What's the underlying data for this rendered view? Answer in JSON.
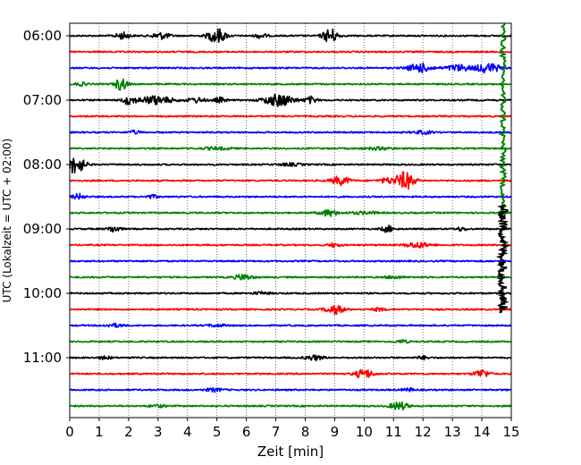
{
  "chart_data": {
    "type": "line",
    "title": "",
    "xlabel": "Zeit  [min]",
    "ylabel": "UTC (Lokalzeit = UTC + 02:00)",
    "xlim": [
      0,
      15
    ],
    "x_ticks": [
      0,
      1,
      2,
      3,
      4,
      5,
      6,
      7,
      8,
      9,
      10,
      11,
      12,
      13,
      14,
      15
    ],
    "x_tick_labels": [
      "0",
      "1",
      "2",
      "3",
      "4",
      "5",
      "6",
      "7",
      "8",
      "9",
      "10",
      "11",
      "12",
      "13",
      "14",
      "15"
    ],
    "y_tick_labels": [
      "06:00",
      "07:00",
      "08:00",
      "09:00",
      "10:00",
      "11:00"
    ],
    "y_tick_trace_index": [
      0,
      4,
      8,
      12,
      16,
      20
    ],
    "grid": "vertical dotted",
    "legend": "none",
    "series_colors": [
      "#000000",
      "#ff0000",
      "#0000ff",
      "#008000"
    ],
    "traces": [
      {
        "start": "06:00",
        "color": "#000000",
        "bursts": [
          [
            1.8,
            0.25,
            0.4
          ],
          [
            3.1,
            0.3,
            0.4
          ],
          [
            5.0,
            0.3,
            0.9
          ],
          [
            6.5,
            0.2,
            0.3
          ],
          [
            8.85,
            0.25,
            0.9
          ]
        ]
      },
      {
        "start": "06:15",
        "color": "#ff0000",
        "bursts": []
      },
      {
        "start": "06:30",
        "color": "#0000ff",
        "bursts": [
          [
            11.9,
            0.4,
            0.55
          ],
          [
            13.2,
            0.4,
            0.4
          ],
          [
            14.2,
            0.4,
            0.6
          ]
        ]
      },
      {
        "start": "06:45",
        "color": "#008000",
        "bursts": [
          [
            1.75,
            0.2,
            0.8
          ],
          [
            0.4,
            0.2,
            0.2
          ]
        ]
      },
      {
        "start": "07:00",
        "color": "#000000",
        "bursts": [
          [
            2.0,
            0.2,
            0.5
          ],
          [
            2.9,
            0.6,
            0.5
          ],
          [
            4.3,
            0.3,
            0.3
          ],
          [
            5.1,
            0.2,
            0.3
          ],
          [
            7.1,
            0.5,
            0.75
          ],
          [
            8.2,
            0.2,
            0.4
          ]
        ]
      },
      {
        "start": "07:15",
        "color": "#ff0000",
        "bursts": []
      },
      {
        "start": "07:30",
        "color": "#0000ff",
        "bursts": [
          [
            2.2,
            0.2,
            0.2
          ],
          [
            12.0,
            0.3,
            0.2
          ]
        ]
      },
      {
        "start": "07:45",
        "color": "#008000",
        "bursts": [
          [
            5.0,
            0.5,
            0.15
          ],
          [
            10.5,
            0.5,
            0.15
          ]
        ]
      },
      {
        "start": "08:00",
        "color": "#000000",
        "bursts": [
          [
            0.2,
            0.3,
            1.1
          ],
          [
            7.5,
            0.4,
            0.15
          ]
        ]
      },
      {
        "start": "08:15",
        "color": "#ff0000",
        "bursts": [
          [
            9.2,
            0.3,
            0.55
          ],
          [
            10.8,
            0.3,
            0.3
          ],
          [
            11.4,
            0.3,
            1.1
          ]
        ]
      },
      {
        "start": "08:30",
        "color": "#0000ff",
        "bursts": [
          [
            0.3,
            0.2,
            0.35
          ],
          [
            2.8,
            0.2,
            0.2
          ]
        ]
      },
      {
        "start": "08:45",
        "color": "#008000",
        "bursts": [
          [
            8.8,
            0.3,
            0.4
          ],
          [
            10.0,
            0.5,
            0.15
          ]
        ]
      },
      {
        "start": "09:00",
        "color": "#000000",
        "bursts": [
          [
            1.5,
            0.2,
            0.4
          ],
          [
            10.8,
            0.2,
            0.4
          ],
          [
            13.3,
            0.2,
            0.2
          ]
        ]
      },
      {
        "start": "09:15",
        "color": "#ff0000",
        "bursts": [
          [
            9.0,
            0.2,
            0.25
          ],
          [
            11.8,
            0.4,
            0.35
          ]
        ]
      },
      {
        "start": "09:30",
        "color": "#0000ff",
        "bursts": []
      },
      {
        "start": "09:45",
        "color": "#008000",
        "bursts": [
          [
            5.9,
            0.3,
            0.35
          ],
          [
            11.0,
            0.3,
            0.15
          ]
        ]
      },
      {
        "start": "10:00",
        "color": "#000000",
        "bursts": [
          [
            6.5,
            0.3,
            0.15
          ]
        ]
      },
      {
        "start": "10:15",
        "color": "#ff0000",
        "bursts": [
          [
            9.0,
            0.3,
            0.55
          ],
          [
            10.5,
            0.2,
            0.2
          ]
        ]
      },
      {
        "start": "10:30",
        "color": "#0000ff",
        "bursts": [
          [
            1.5,
            0.3,
            0.2
          ],
          [
            5.0,
            0.3,
            0.15
          ]
        ]
      },
      {
        "start": "10:45",
        "color": "#008000",
        "bursts": [
          [
            11.3,
            0.2,
            0.2
          ]
        ]
      },
      {
        "start": "11:00",
        "color": "#000000",
        "bursts": [
          [
            1.2,
            0.2,
            0.2
          ],
          [
            8.3,
            0.3,
            0.3
          ],
          [
            12.0,
            0.2,
            0.2
          ]
        ]
      },
      {
        "start": "11:15",
        "color": "#ff0000",
        "bursts": [
          [
            10.0,
            0.3,
            0.55
          ],
          [
            14.0,
            0.25,
            0.5
          ]
        ]
      },
      {
        "start": "11:30",
        "color": "#0000ff",
        "bursts": [
          [
            4.9,
            0.3,
            0.2
          ],
          [
            11.5,
            0.2,
            0.2
          ]
        ]
      },
      {
        "start": "11:45",
        "color": "#008000",
        "bursts": [
          [
            11.2,
            0.3,
            0.5
          ],
          [
            3.0,
            0.3,
            0.15
          ]
        ]
      }
    ],
    "vertical_spikes": [
      {
        "x": 14.72,
        "color": "#008000",
        "from_trace": -0.8,
        "to_trace": 11.4
      },
      {
        "x": 14.72,
        "color": "#000000",
        "from_trace": 10.5,
        "to_trace": 17.2
      }
    ]
  }
}
